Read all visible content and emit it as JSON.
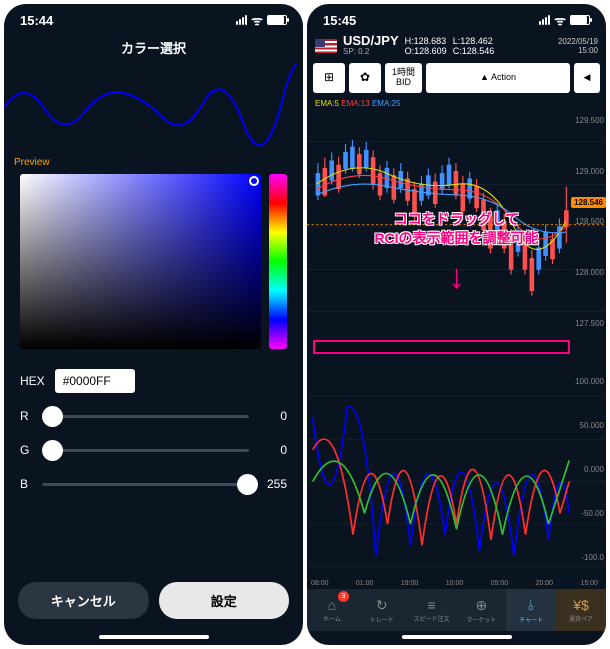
{
  "left": {
    "time": "15:44",
    "title": "カラー選択",
    "preview_label": "Preview",
    "preview_wave_color": "#0000ff",
    "hex_label": "HEX",
    "hex_value": "#0000FF",
    "sliders": [
      {
        "label": "R",
        "value": 0,
        "max": 255,
        "thumb_pct": 0
      },
      {
        "label": "G",
        "value": 0,
        "max": 255,
        "thumb_pct": 0
      },
      {
        "label": "B",
        "value": 255,
        "max": 255,
        "thumb_pct": 94
      }
    ],
    "cancel": "キャンセル",
    "ok": "設定"
  },
  "right": {
    "time": "15:45",
    "pair": "USD/JPY",
    "sp_label": "SP:",
    "sp": "0.2",
    "h_label": "H:",
    "h": "128.683",
    "o_label": "O:",
    "o": "128.609",
    "l_label": "L:",
    "l": "128.462",
    "c_label": "C:",
    "c": "128.546",
    "date": "2022/05/19",
    "date_time": "15:00",
    "toolbar": {
      "timeframe_top": "1時間",
      "timeframe_bot": "BID",
      "action_icon": "▲",
      "action": "Action",
      "back": "◀"
    },
    "ema": {
      "e1": "EMA:5",
      "e2": "EMA:13",
      "e3": "EMA:25"
    },
    "y_ticks_upper": [
      "129.500",
      "129.000",
      "128.500",
      "128.000",
      "127.500"
    ],
    "price_now": "128.546",
    "price_tag_top_pct": 39,
    "y_ticks_lower": [
      "100.000",
      "50.000",
      "0.000",
      "-50.00",
      "-100.0"
    ],
    "x_ticks": [
      "08:00",
      "01:00",
      "19:00",
      "10:00",
      "05:00",
      "20:00",
      "15:00"
    ],
    "annotation_line1": "ココをドラッグして",
    "annotation_line2": "RCIの表示範囲を調整可能",
    "nav": [
      {
        "icon": "⌂",
        "label": "ホーム",
        "badge": "3"
      },
      {
        "icon": "↻",
        "label": "トレード"
      },
      {
        "icon": "≡",
        "label": "スピード注文"
      },
      {
        "icon": "⊕",
        "label": "マーケット"
      },
      {
        "icon": "⫰",
        "label": "チャート",
        "active": true
      },
      {
        "icon": "¥$",
        "label": "通貨ペア",
        "img": true
      }
    ],
    "chart_colors": {
      "candle_up": "#4090ff",
      "candle_down": "#ff5050",
      "ema5": "#e0e000",
      "ema13": "#ff4040",
      "ema25": "#40a0ff",
      "rci1": "#0000ff",
      "rci2": "#ff3030",
      "rci3": "#30c030",
      "grid": "#1a2838"
    }
  }
}
